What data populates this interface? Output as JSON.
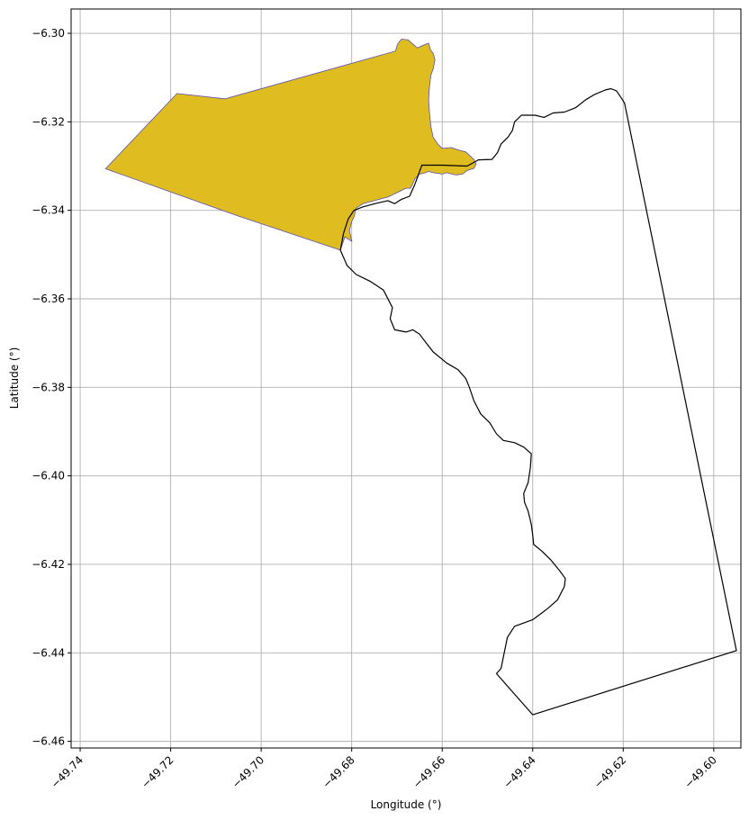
{
  "figure": {
    "xlabel": "Longitude (°)",
    "ylabel": "Latitude (°)",
    "xlim": [
      -49.742,
      -49.594
    ],
    "ylim": [
      -6.4615,
      -6.2945
    ],
    "xticks": [
      -49.74,
      -49.72,
      -49.7,
      -49.68,
      -49.66,
      -49.64,
      -49.62,
      -49.6
    ],
    "xtick_labels": [
      "−49.74",
      "−49.72",
      "−49.70",
      "−49.68",
      "−49.66",
      "−49.64",
      "−49.62",
      "−49.60"
    ],
    "yticks": [
      -6.3,
      -6.32,
      -6.34,
      -6.36,
      -6.38,
      -6.4,
      -6.42,
      -6.44,
      -6.46
    ],
    "ytick_labels": [
      "−6.30",
      "−6.32",
      "−6.34",
      "−6.36",
      "−6.38",
      "−6.40",
      "−6.42",
      "−6.44",
      "−6.46"
    ],
    "grid": true
  },
  "map_data": {
    "filled_region": {
      "fill": "#DFBD20",
      "edge": "#5A4FB0",
      "coords": [
        [
          -49.7344,
          -6.3306
        ],
        [
          -49.7186,
          -6.3136
        ],
        [
          -49.708,
          -6.3148
        ],
        [
          -49.6703,
          -6.304
        ],
        [
          -49.6699,
          -6.3025
        ],
        [
          -49.669,
          -6.3013
        ],
        [
          -49.6675,
          -6.3015
        ],
        [
          -49.6664,
          -6.3025
        ],
        [
          -49.6655,
          -6.3033
        ],
        [
          -49.6642,
          -6.3027
        ],
        [
          -49.663,
          -6.3022
        ],
        [
          -49.6626,
          -6.3037
        ],
        [
          -49.662,
          -6.3045
        ],
        [
          -49.6616,
          -6.306
        ],
        [
          -49.662,
          -6.308
        ],
        [
          -49.6625,
          -6.3095
        ],
        [
          -49.6628,
          -6.312
        ],
        [
          -49.663,
          -6.315
        ],
        [
          -49.6628,
          -6.318
        ],
        [
          -49.6625,
          -6.321
        ],
        [
          -49.662,
          -6.3235
        ],
        [
          -49.661,
          -6.325
        ],
        [
          -49.66,
          -6.326
        ],
        [
          -49.658,
          -6.3258
        ],
        [
          -49.656,
          -6.3265
        ],
        [
          -49.6548,
          -6.3268
        ],
        [
          -49.653,
          -6.3285
        ],
        [
          -49.6525,
          -6.3295
        ],
        [
          -49.653,
          -6.3305
        ],
        [
          -49.6545,
          -6.331
        ],
        [
          -49.6555,
          -6.3318
        ],
        [
          -49.657,
          -6.332
        ],
        [
          -49.659,
          -6.3315
        ],
        [
          -49.66,
          -6.3318
        ],
        [
          -49.662,
          -6.3315
        ],
        [
          -49.663,
          -6.3312
        ],
        [
          -49.664,
          -6.3316
        ],
        [
          -49.665,
          -6.3318
        ],
        [
          -49.666,
          -6.3328
        ],
        [
          -49.6665,
          -6.334
        ],
        [
          -49.667,
          -6.335
        ],
        [
          -49.668,
          -6.335
        ],
        [
          -49.67,
          -6.336
        ],
        [
          -49.672,
          -6.337
        ],
        [
          -49.675,
          -6.3378
        ],
        [
          -49.6775,
          -6.3385
        ],
        [
          -49.679,
          -6.3395
        ],
        [
          -49.6795,
          -6.3415
        ],
        [
          -49.68,
          -6.3425
        ],
        [
          -49.6805,
          -6.3445
        ],
        [
          -49.68,
          -6.347
        ],
        [
          -49.6815,
          -6.346
        ],
        [
          -49.6825,
          -6.349
        ],
        [
          -49.705,
          -6.3413
        ],
        [
          -49.7344,
          -6.3306
        ]
      ]
    },
    "boundary": {
      "stroke": "#000000",
      "coords": [
        [
          -49.6825,
          -6.349
        ],
        [
          -49.6818,
          -6.3452
        ],
        [
          -49.6808,
          -6.342
        ],
        [
          -49.6795,
          -6.34
        ],
        [
          -49.6775,
          -6.3392
        ],
        [
          -49.6745,
          -6.3384
        ],
        [
          -49.672,
          -6.3378
        ],
        [
          -49.6705,
          -6.3385
        ],
        [
          -49.669,
          -6.3375
        ],
        [
          -49.6672,
          -6.3368
        ],
        [
          -49.666,
          -6.334
        ],
        [
          -49.6645,
          -6.3298
        ],
        [
          -49.66,
          -6.3298
        ],
        [
          -49.6545,
          -6.33
        ],
        [
          -49.652,
          -6.3286
        ],
        [
          -49.649,
          -6.3285
        ],
        [
          -49.6478,
          -6.327
        ],
        [
          -49.647,
          -6.325
        ],
        [
          -49.6455,
          -6.3235
        ],
        [
          -49.6445,
          -6.322
        ],
        [
          -49.644,
          -6.32
        ],
        [
          -49.6425,
          -6.3185
        ],
        [
          -49.6395,
          -6.3185
        ],
        [
          -49.6375,
          -6.319
        ],
        [
          -49.6355,
          -6.318
        ],
        [
          -49.633,
          -6.3178
        ],
        [
          -49.6305,
          -6.3168
        ],
        [
          -49.6283,
          -6.315
        ],
        [
          -49.6263,
          -6.3138
        ],
        [
          -49.624,
          -6.3128
        ],
        [
          -49.6227,
          -6.3125
        ],
        [
          -49.6215,
          -6.313
        ],
        [
          -49.6203,
          -6.3148
        ],
        [
          -49.6197,
          -6.3158
        ],
        [
          -49.595,
          -6.4395
        ],
        [
          -49.64,
          -6.454
        ],
        [
          -49.648,
          -6.4447
        ],
        [
          -49.647,
          -6.4435
        ],
        [
          -49.6463,
          -6.44
        ],
        [
          -49.6456,
          -6.4365
        ],
        [
          -49.644,
          -6.434
        ],
        [
          -49.64,
          -6.4325
        ],
        [
          -49.638,
          -6.431
        ],
        [
          -49.6365,
          -6.4298
        ],
        [
          -49.6345,
          -6.428
        ],
        [
          -49.633,
          -6.425
        ],
        [
          -49.6328,
          -6.4232
        ],
        [
          -49.634,
          -6.4215
        ],
        [
          -49.636,
          -6.419
        ],
        [
          -49.638,
          -6.417
        ],
        [
          -49.6398,
          -6.4155
        ],
        [
          -49.64,
          -6.4135
        ],
        [
          -49.6403,
          -6.411
        ],
        [
          -49.641,
          -6.408
        ],
        [
          -49.6418,
          -6.406
        ],
        [
          -49.642,
          -6.404
        ],
        [
          -49.641,
          -6.4015
        ],
        [
          -49.6405,
          -6.398
        ],
        [
          -49.6403,
          -6.395
        ],
        [
          -49.642,
          -6.3935
        ],
        [
          -49.644,
          -6.3925
        ],
        [
          -49.6465,
          -6.392
        ],
        [
          -49.648,
          -6.3905
        ],
        [
          -49.6495,
          -6.388
        ],
        [
          -49.6515,
          -6.386
        ],
        [
          -49.653,
          -6.383
        ],
        [
          -49.654,
          -6.38
        ],
        [
          -49.6548,
          -6.378
        ],
        [
          -49.6565,
          -6.376
        ],
        [
          -49.659,
          -6.3745
        ],
        [
          -49.662,
          -6.372
        ],
        [
          -49.6635,
          -6.37
        ],
        [
          -49.665,
          -6.368
        ],
        [
          -49.6665,
          -6.367
        ],
        [
          -49.668,
          -6.3675
        ],
        [
          -49.6705,
          -6.367
        ],
        [
          -49.6715,
          -6.3645
        ],
        [
          -49.671,
          -6.362
        ],
        [
          -49.673,
          -6.358
        ],
        [
          -49.676,
          -6.356
        ],
        [
          -49.679,
          -6.3545
        ],
        [
          -49.681,
          -6.3525
        ],
        [
          -49.6825,
          -6.349
        ]
      ]
    }
  }
}
